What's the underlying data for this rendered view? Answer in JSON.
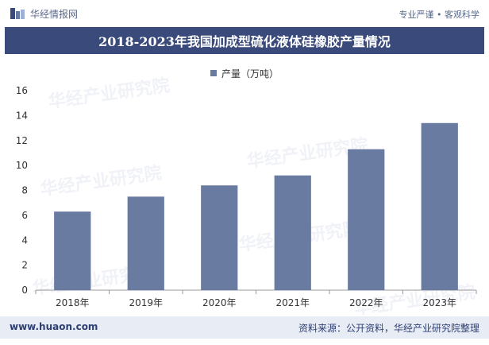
{
  "header": {
    "brand_name": "华经情报网",
    "slogan": "专业严谨 • 客观科学"
  },
  "title": "2018-2023年我国加成型硫化液体硅橡胶产量情况",
  "watermark": "华经产业研究院",
  "footer": {
    "url": "www.huaon.com",
    "source": "资料来源：公开资料，华经产业研究院整理"
  },
  "colors": {
    "bar": "#6a7ba2",
    "title_bg": "#3a4a7a",
    "footer_bg": "#e8ecf5"
  },
  "chart_data": {
    "type": "bar",
    "title": "2018-2023年我国加成型硫化液体硅橡胶产量情况",
    "categories": [
      "2018年",
      "2019年",
      "2020年",
      "2021年",
      "2022年",
      "2023年"
    ],
    "series": [
      {
        "name": "产量（万吨）",
        "values": [
          6.3,
          7.5,
          8.4,
          9.2,
          11.3,
          13.4
        ]
      }
    ],
    "xlabel": "",
    "ylabel": "",
    "ylim": [
      0,
      16
    ],
    "yticks": [
      "0",
      "2",
      "4",
      "6",
      "8",
      "10",
      "12",
      "14",
      "16"
    ],
    "legend_position": "top-center",
    "grid": false
  }
}
